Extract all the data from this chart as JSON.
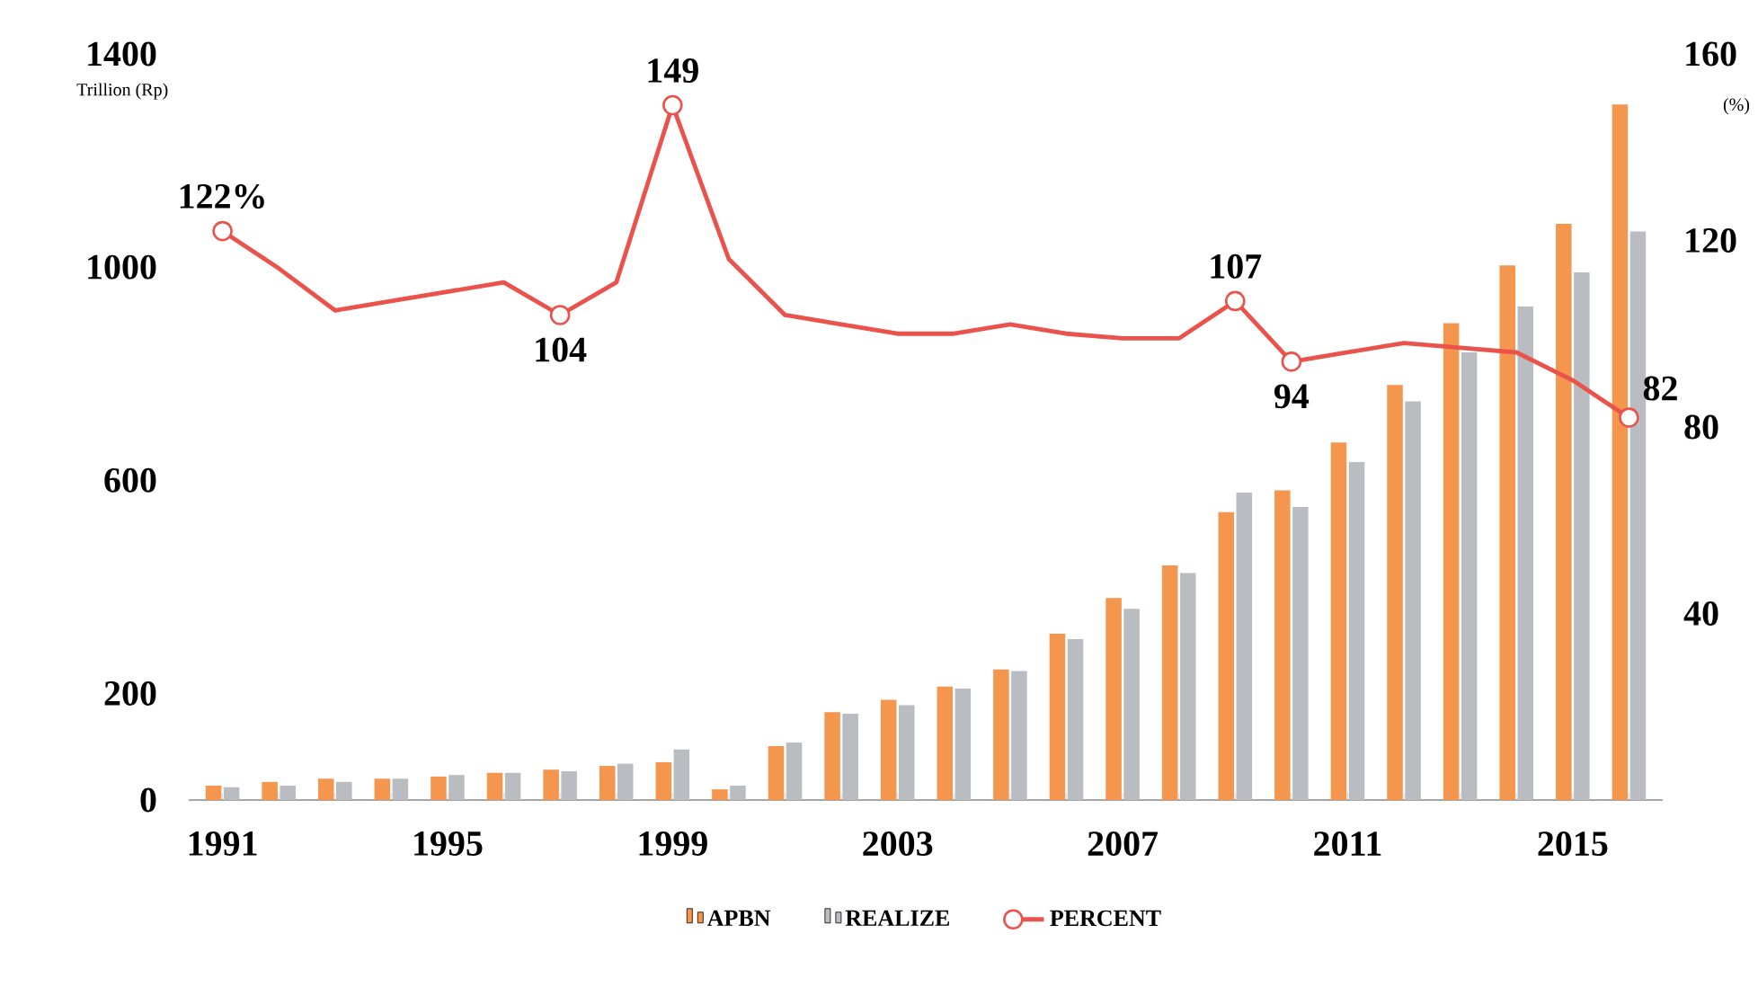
{
  "chart_data": {
    "type": "bar",
    "ylabel": "Trillion (Rp)",
    "y2label": "(%)",
    "categories": [
      "1991",
      null,
      null,
      null,
      "1995",
      null,
      null,
      null,
      "1999",
      null,
      null,
      null,
      "2003",
      null,
      null,
      null,
      "2007",
      null,
      null,
      null,
      "2011",
      null,
      null,
      null,
      "2015",
      null
    ],
    "series": [
      {
        "name": "APBN",
        "color": "#f5964f",
        "values": [
          27,
          34,
          40,
          40,
          44,
          51,
          57,
          64,
          71,
          20,
          101,
          165,
          188,
          213,
          245,
          312,
          379,
          440,
          540,
          581,
          671,
          779,
          895,
          1003,
          1081,
          1305
        ]
      },
      {
        "name": "REALIZE",
        "color": "#b9bcc0",
        "values": [
          24,
          27,
          34,
          40,
          47,
          51,
          54,
          68,
          95,
          27,
          108,
          162,
          178,
          209,
          242,
          302,
          359,
          426,
          577,
          550,
          634,
          748,
          840,
          926,
          990,
          1067
        ]
      },
      {
        "name": "PERCENT",
        "type": "line",
        "axis": "y2",
        "color": "#e9534b",
        "values": [
          122,
          114,
          105,
          107,
          109,
          111,
          104,
          111,
          149,
          116,
          104,
          102,
          100,
          100,
          102,
          100,
          99,
          99,
          107,
          94,
          96,
          98,
          97,
          96,
          90,
          82
        ],
        "value_labels": [
          "122%",
          null,
          null,
          null,
          null,
          null,
          "104",
          null,
          "149",
          null,
          null,
          null,
          null,
          null,
          null,
          null,
          null,
          null,
          "107",
          "94",
          null,
          null,
          null,
          null,
          null,
          "82"
        ]
      }
    ],
    "ylim": [
      0,
      1400
    ],
    "yticks": [
      0,
      200,
      600,
      1000,
      1400
    ],
    "y2lim": [
      0,
      160
    ],
    "y2ticks": [
      40,
      80,
      120,
      160
    ],
    "legend": "bottom",
    "grid": false
  }
}
